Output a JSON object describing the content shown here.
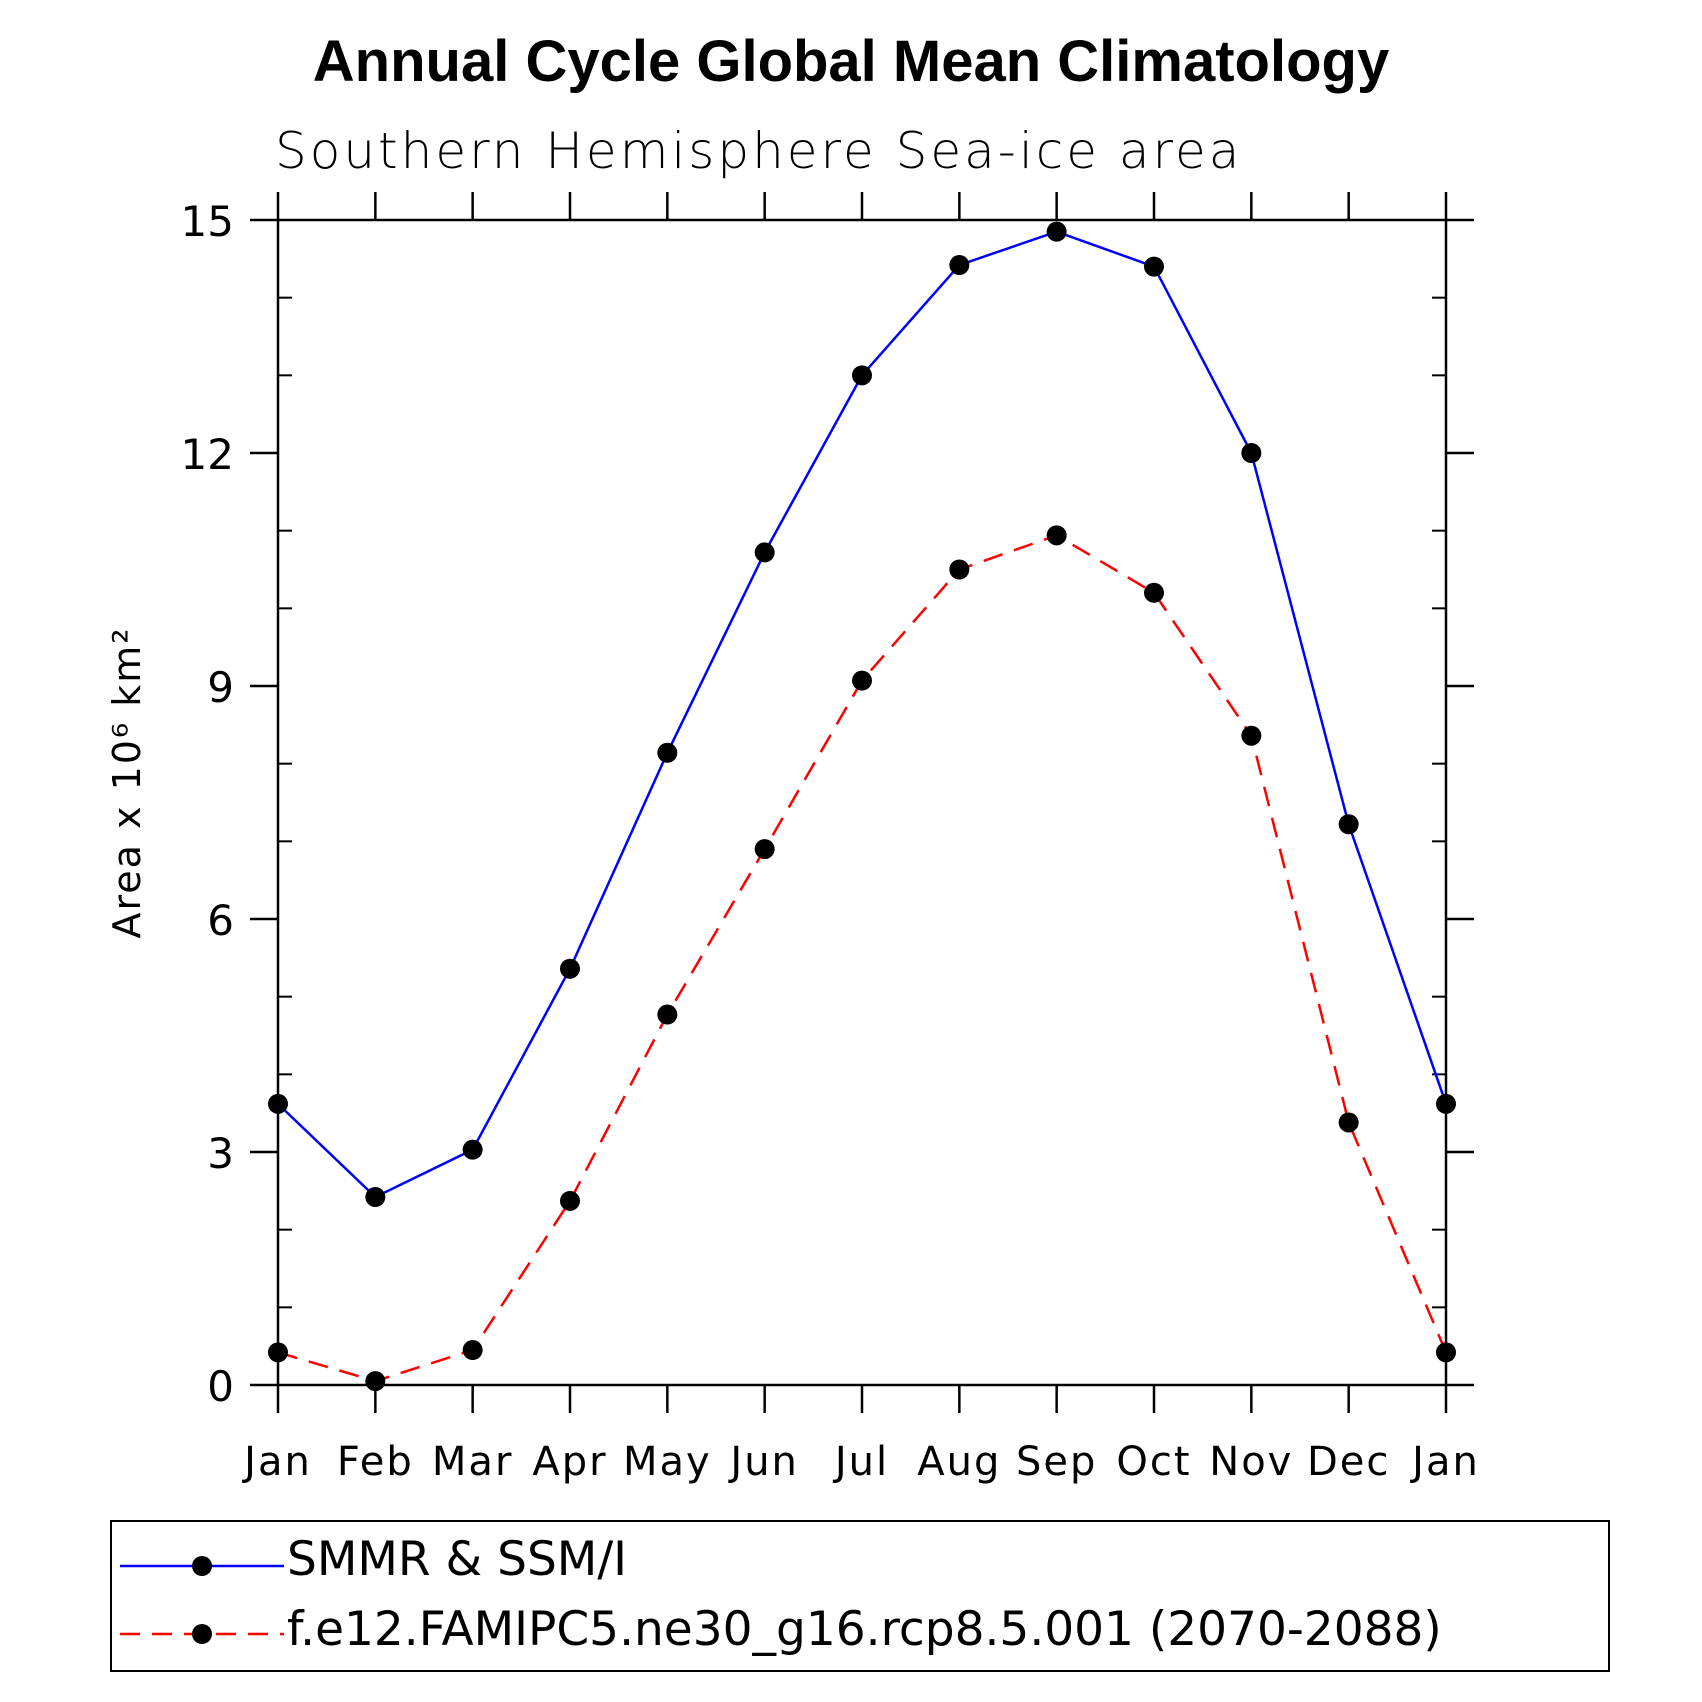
{
  "chart_data": {
    "type": "line",
    "title": "Annual Cycle Global Mean Climatology",
    "subtitle": "Southern Hemisphere Sea-ice area",
    "ylabel": "Area x 10⁶ km²",
    "xlabel": "",
    "ylim": [
      0,
      15
    ],
    "yticks": [
      0,
      3,
      6,
      9,
      12,
      15
    ],
    "ytick_labels": [
      "0",
      "3",
      "6",
      "9",
      "12",
      "15"
    ],
    "categories": [
      "Jan",
      "Feb",
      "Mar",
      "Apr",
      "May",
      "Jun",
      "Jul",
      "Aug",
      "Sep",
      "Oct",
      "Nov",
      "Dec",
      "Jan"
    ],
    "series": [
      {
        "name": "SMMR & SSM/I",
        "color": "#0000ff",
        "dash": "solid",
        "values": [
          3.62,
          2.42,
          3.03,
          5.36,
          8.14,
          10.72,
          13.0,
          14.42,
          14.85,
          14.4,
          12.0,
          7.22,
          3.62
        ]
      },
      {
        "name": "f.e12.FAMIPC5.ne30_g16.rcp8.5.001 (2070-2088)",
        "color": "#ff0000",
        "dash": "dashed",
        "values": [
          0.42,
          0.05,
          0.45,
          2.37,
          4.77,
          6.9,
          9.07,
          10.5,
          10.94,
          10.2,
          8.36,
          3.38,
          0.42
        ]
      }
    ],
    "legend_position": "bottom"
  }
}
